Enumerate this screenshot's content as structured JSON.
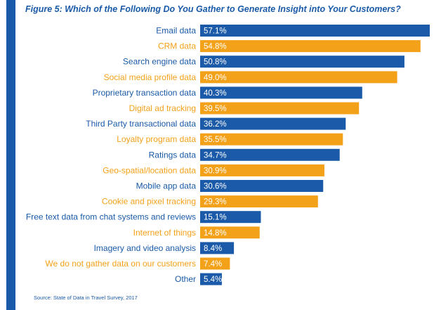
{
  "title": "Figure 5: Which of the Following Do You Gather to Generate Insight into Your Customers?",
  "source": "Source: State of Data in Travel Survey, 2017",
  "colors": {
    "blue": "#1a5aa8",
    "orange": "#f4a11a",
    "accent": "#1a5aa8"
  },
  "chart_data": {
    "type": "bar",
    "orientation": "horizontal",
    "title": "Figure 5: Which of the Following Do You Gather to Generate Insight into Your Customers?",
    "categories": [
      "Email data",
      "CRM data",
      "Search engine data",
      "Social media profile data",
      "Proprietary transaction data",
      "Digital ad tracking",
      "Third Party transactional data",
      "Loyalty program data",
      "Ratings data",
      "Geo-spatial/location data",
      "Mobile app data",
      "Cookie and pixel tracking",
      "Free text data from chat systems and reviews",
      "Internet of things",
      "Imagery and video analysis",
      "We do not gather data on our customers",
      "Other"
    ],
    "values": [
      57.1,
      54.8,
      50.8,
      49.0,
      40.3,
      39.5,
      36.2,
      35.5,
      34.7,
      30.9,
      30.6,
      29.3,
      15.1,
      14.8,
      8.4,
      7.4,
      5.4
    ],
    "value_labels": [
      "57.1%",
      "54.8%",
      "50.8%",
      "49.0%",
      "40.3%",
      "39.5%",
      "36.2%",
      "35.5%",
      "34.7%",
      "30.9%",
      "30.6%",
      "29.3%",
      "15.1%",
      "14.8%",
      "8.4%",
      "7.4%",
      "5.4%"
    ],
    "color_pattern": [
      "blue",
      "orange"
    ],
    "xlim": [
      0,
      57.1
    ],
    "grid": false,
    "legend": "none"
  }
}
